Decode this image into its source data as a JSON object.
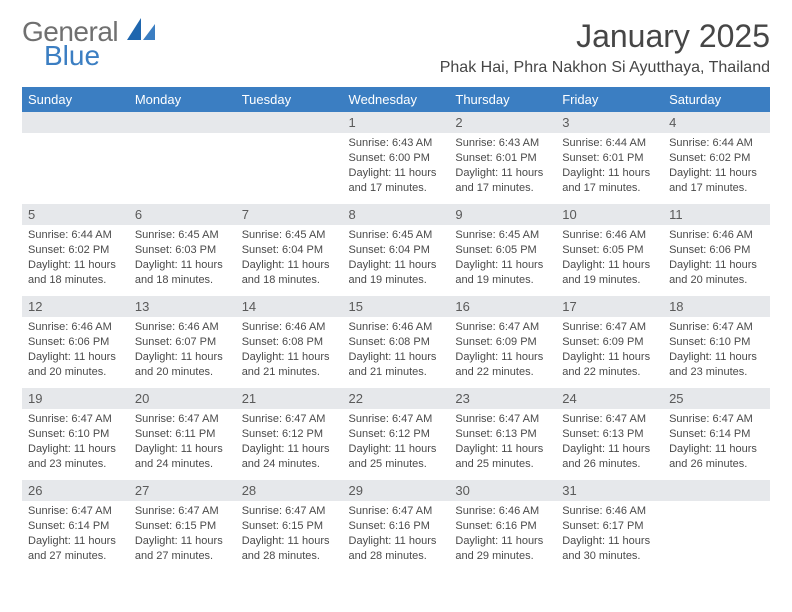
{
  "colors": {
    "header_bg": "#3b7ec2",
    "header_text": "#ffffff",
    "daybar_bg": "#e6e8eb",
    "daybar_text": "#5a5a5a",
    "body_text": "#4a4a4a",
    "title_text": "#464646",
    "logo_gray": "#707070",
    "logo_blue": "#3b7ec2",
    "page_bg": "#ffffff"
  },
  "typography": {
    "month_title_fontsize": 32,
    "location_fontsize": 16,
    "weekday_fontsize": 13,
    "daynum_fontsize": 13,
    "cell_fontsize": 11,
    "logo_fontsize": 28
  },
  "logo": {
    "line1": "General",
    "line2": "Blue"
  },
  "title": "January 2025",
  "location": "Phak Hai, Phra Nakhon Si Ayutthaya, Thailand",
  "weekdays": [
    "Sunday",
    "Monday",
    "Tuesday",
    "Wednesday",
    "Thursday",
    "Friday",
    "Saturday"
  ],
  "layout": {
    "columns": 7,
    "rows": 5,
    "first_weekday_index": 3,
    "days_in_month": 31
  },
  "days": [
    {
      "n": "1",
      "sunrise": "Sunrise: 6:43 AM",
      "sunset": "Sunset: 6:00 PM",
      "day1": "Daylight: 11 hours",
      "day2": "and 17 minutes."
    },
    {
      "n": "2",
      "sunrise": "Sunrise: 6:43 AM",
      "sunset": "Sunset: 6:01 PM",
      "day1": "Daylight: 11 hours",
      "day2": "and 17 minutes."
    },
    {
      "n": "3",
      "sunrise": "Sunrise: 6:44 AM",
      "sunset": "Sunset: 6:01 PM",
      "day1": "Daylight: 11 hours",
      "day2": "and 17 minutes."
    },
    {
      "n": "4",
      "sunrise": "Sunrise: 6:44 AM",
      "sunset": "Sunset: 6:02 PM",
      "day1": "Daylight: 11 hours",
      "day2": "and 17 minutes."
    },
    {
      "n": "5",
      "sunrise": "Sunrise: 6:44 AM",
      "sunset": "Sunset: 6:02 PM",
      "day1": "Daylight: 11 hours",
      "day2": "and 18 minutes."
    },
    {
      "n": "6",
      "sunrise": "Sunrise: 6:45 AM",
      "sunset": "Sunset: 6:03 PM",
      "day1": "Daylight: 11 hours",
      "day2": "and 18 minutes."
    },
    {
      "n": "7",
      "sunrise": "Sunrise: 6:45 AM",
      "sunset": "Sunset: 6:04 PM",
      "day1": "Daylight: 11 hours",
      "day2": "and 18 minutes."
    },
    {
      "n": "8",
      "sunrise": "Sunrise: 6:45 AM",
      "sunset": "Sunset: 6:04 PM",
      "day1": "Daylight: 11 hours",
      "day2": "and 19 minutes."
    },
    {
      "n": "9",
      "sunrise": "Sunrise: 6:45 AM",
      "sunset": "Sunset: 6:05 PM",
      "day1": "Daylight: 11 hours",
      "day2": "and 19 minutes."
    },
    {
      "n": "10",
      "sunrise": "Sunrise: 6:46 AM",
      "sunset": "Sunset: 6:05 PM",
      "day1": "Daylight: 11 hours",
      "day2": "and 19 minutes."
    },
    {
      "n": "11",
      "sunrise": "Sunrise: 6:46 AM",
      "sunset": "Sunset: 6:06 PM",
      "day1": "Daylight: 11 hours",
      "day2": "and 20 minutes."
    },
    {
      "n": "12",
      "sunrise": "Sunrise: 6:46 AM",
      "sunset": "Sunset: 6:06 PM",
      "day1": "Daylight: 11 hours",
      "day2": "and 20 minutes."
    },
    {
      "n": "13",
      "sunrise": "Sunrise: 6:46 AM",
      "sunset": "Sunset: 6:07 PM",
      "day1": "Daylight: 11 hours",
      "day2": "and 20 minutes."
    },
    {
      "n": "14",
      "sunrise": "Sunrise: 6:46 AM",
      "sunset": "Sunset: 6:08 PM",
      "day1": "Daylight: 11 hours",
      "day2": "and 21 minutes."
    },
    {
      "n": "15",
      "sunrise": "Sunrise: 6:46 AM",
      "sunset": "Sunset: 6:08 PM",
      "day1": "Daylight: 11 hours",
      "day2": "and 21 minutes."
    },
    {
      "n": "16",
      "sunrise": "Sunrise: 6:47 AM",
      "sunset": "Sunset: 6:09 PM",
      "day1": "Daylight: 11 hours",
      "day2": "and 22 minutes."
    },
    {
      "n": "17",
      "sunrise": "Sunrise: 6:47 AM",
      "sunset": "Sunset: 6:09 PM",
      "day1": "Daylight: 11 hours",
      "day2": "and 22 minutes."
    },
    {
      "n": "18",
      "sunrise": "Sunrise: 6:47 AM",
      "sunset": "Sunset: 6:10 PM",
      "day1": "Daylight: 11 hours",
      "day2": "and 23 minutes."
    },
    {
      "n": "19",
      "sunrise": "Sunrise: 6:47 AM",
      "sunset": "Sunset: 6:10 PM",
      "day1": "Daylight: 11 hours",
      "day2": "and 23 minutes."
    },
    {
      "n": "20",
      "sunrise": "Sunrise: 6:47 AM",
      "sunset": "Sunset: 6:11 PM",
      "day1": "Daylight: 11 hours",
      "day2": "and 24 minutes."
    },
    {
      "n": "21",
      "sunrise": "Sunrise: 6:47 AM",
      "sunset": "Sunset: 6:12 PM",
      "day1": "Daylight: 11 hours",
      "day2": "and 24 minutes."
    },
    {
      "n": "22",
      "sunrise": "Sunrise: 6:47 AM",
      "sunset": "Sunset: 6:12 PM",
      "day1": "Daylight: 11 hours",
      "day2": "and 25 minutes."
    },
    {
      "n": "23",
      "sunrise": "Sunrise: 6:47 AM",
      "sunset": "Sunset: 6:13 PM",
      "day1": "Daylight: 11 hours",
      "day2": "and 25 minutes."
    },
    {
      "n": "24",
      "sunrise": "Sunrise: 6:47 AM",
      "sunset": "Sunset: 6:13 PM",
      "day1": "Daylight: 11 hours",
      "day2": "and 26 minutes."
    },
    {
      "n": "25",
      "sunrise": "Sunrise: 6:47 AM",
      "sunset": "Sunset: 6:14 PM",
      "day1": "Daylight: 11 hours",
      "day2": "and 26 minutes."
    },
    {
      "n": "26",
      "sunrise": "Sunrise: 6:47 AM",
      "sunset": "Sunset: 6:14 PM",
      "day1": "Daylight: 11 hours",
      "day2": "and 27 minutes."
    },
    {
      "n": "27",
      "sunrise": "Sunrise: 6:47 AM",
      "sunset": "Sunset: 6:15 PM",
      "day1": "Daylight: 11 hours",
      "day2": "and 27 minutes."
    },
    {
      "n": "28",
      "sunrise": "Sunrise: 6:47 AM",
      "sunset": "Sunset: 6:15 PM",
      "day1": "Daylight: 11 hours",
      "day2": "and 28 minutes."
    },
    {
      "n": "29",
      "sunrise": "Sunrise: 6:47 AM",
      "sunset": "Sunset: 6:16 PM",
      "day1": "Daylight: 11 hours",
      "day2": "and 28 minutes."
    },
    {
      "n": "30",
      "sunrise": "Sunrise: 6:46 AM",
      "sunset": "Sunset: 6:16 PM",
      "day1": "Daylight: 11 hours",
      "day2": "and 29 minutes."
    },
    {
      "n": "31",
      "sunrise": "Sunrise: 6:46 AM",
      "sunset": "Sunset: 6:17 PM",
      "day1": "Daylight: 11 hours",
      "day2": "and 30 minutes."
    }
  ]
}
